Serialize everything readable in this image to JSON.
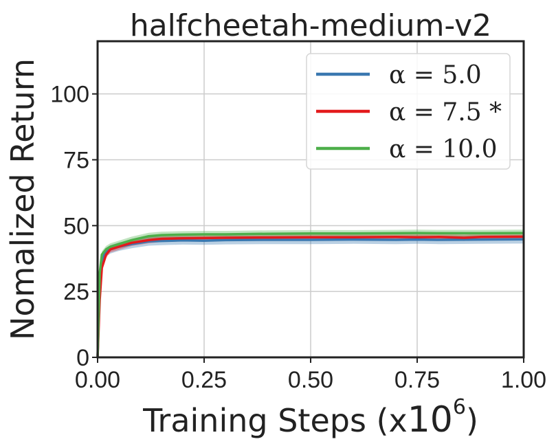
{
  "chart_data": {
    "type": "line",
    "title": "halfcheetah-medium-v2",
    "xlabel": "Training Steps (x",
    "xlabel_exponent_base": "10",
    "xlabel_exponent": "6",
    "xlabel_suffix": ")",
    "ylabel": "Nomalized Return",
    "xlim": [
      0,
      1.0
    ],
    "ylim": [
      0,
      120
    ],
    "xticks": [
      0,
      0.25,
      0.5,
      0.75,
      1.0
    ],
    "xtick_labels": [
      "0.00",
      "0.25",
      "0.50",
      "0.75",
      "1.00"
    ],
    "yticks": [
      0,
      25,
      50,
      75,
      100
    ],
    "ytick_labels": [
      "0",
      "25",
      "50",
      "75",
      "100"
    ],
    "grid": true,
    "legend_position": "top-right",
    "series": [
      {
        "name": "α = 5.0",
        "color": "#3a78b0",
        "x": [
          0,
          0.005,
          0.01,
          0.02,
          0.03,
          0.05,
          0.08,
          0.12,
          0.15,
          0.2,
          0.25,
          0.3,
          0.4,
          0.5,
          0.6,
          0.7,
          0.75,
          0.8,
          0.9,
          1.0
        ],
        "y": [
          0,
          28,
          37,
          40,
          41,
          42,
          43,
          44,
          44.2,
          44.4,
          44.3,
          44.5,
          44.6,
          44.6,
          44.7,
          44.6,
          44.7,
          44.6,
          44.7,
          44.8
        ],
        "band": 1.6
      },
      {
        "name": "α = 7.5 *",
        "color": "#e31a1c",
        "x": [
          0,
          0.005,
          0.01,
          0.02,
          0.03,
          0.05,
          0.08,
          0.12,
          0.15,
          0.2,
          0.25,
          0.3,
          0.4,
          0.5,
          0.6,
          0.7,
          0.75,
          0.8,
          0.86,
          0.9,
          1.0
        ],
        "y": [
          0,
          22,
          34,
          39,
          41,
          42,
          43.5,
          44.5,
          45,
          45.2,
          45.3,
          45.4,
          45.5,
          45.6,
          45.6,
          45.7,
          45.6,
          45.7,
          45.4,
          45.7,
          45.8
        ],
        "band": 1.2
      },
      {
        "name": "α = 10.0",
        "color": "#4daf4a",
        "x": [
          0,
          0.005,
          0.01,
          0.02,
          0.03,
          0.05,
          0.08,
          0.12,
          0.15,
          0.2,
          0.25,
          0.3,
          0.4,
          0.5,
          0.6,
          0.7,
          0.75,
          0.8,
          0.9,
          1.0
        ],
        "y": [
          0,
          32,
          39,
          41,
          42,
          43,
          44.5,
          46,
          46.4,
          46.6,
          46.7,
          46.7,
          46.9,
          47,
          47,
          47.1,
          47.2,
          47.1,
          47.1,
          47.2
        ],
        "band": 1.3
      }
    ]
  }
}
